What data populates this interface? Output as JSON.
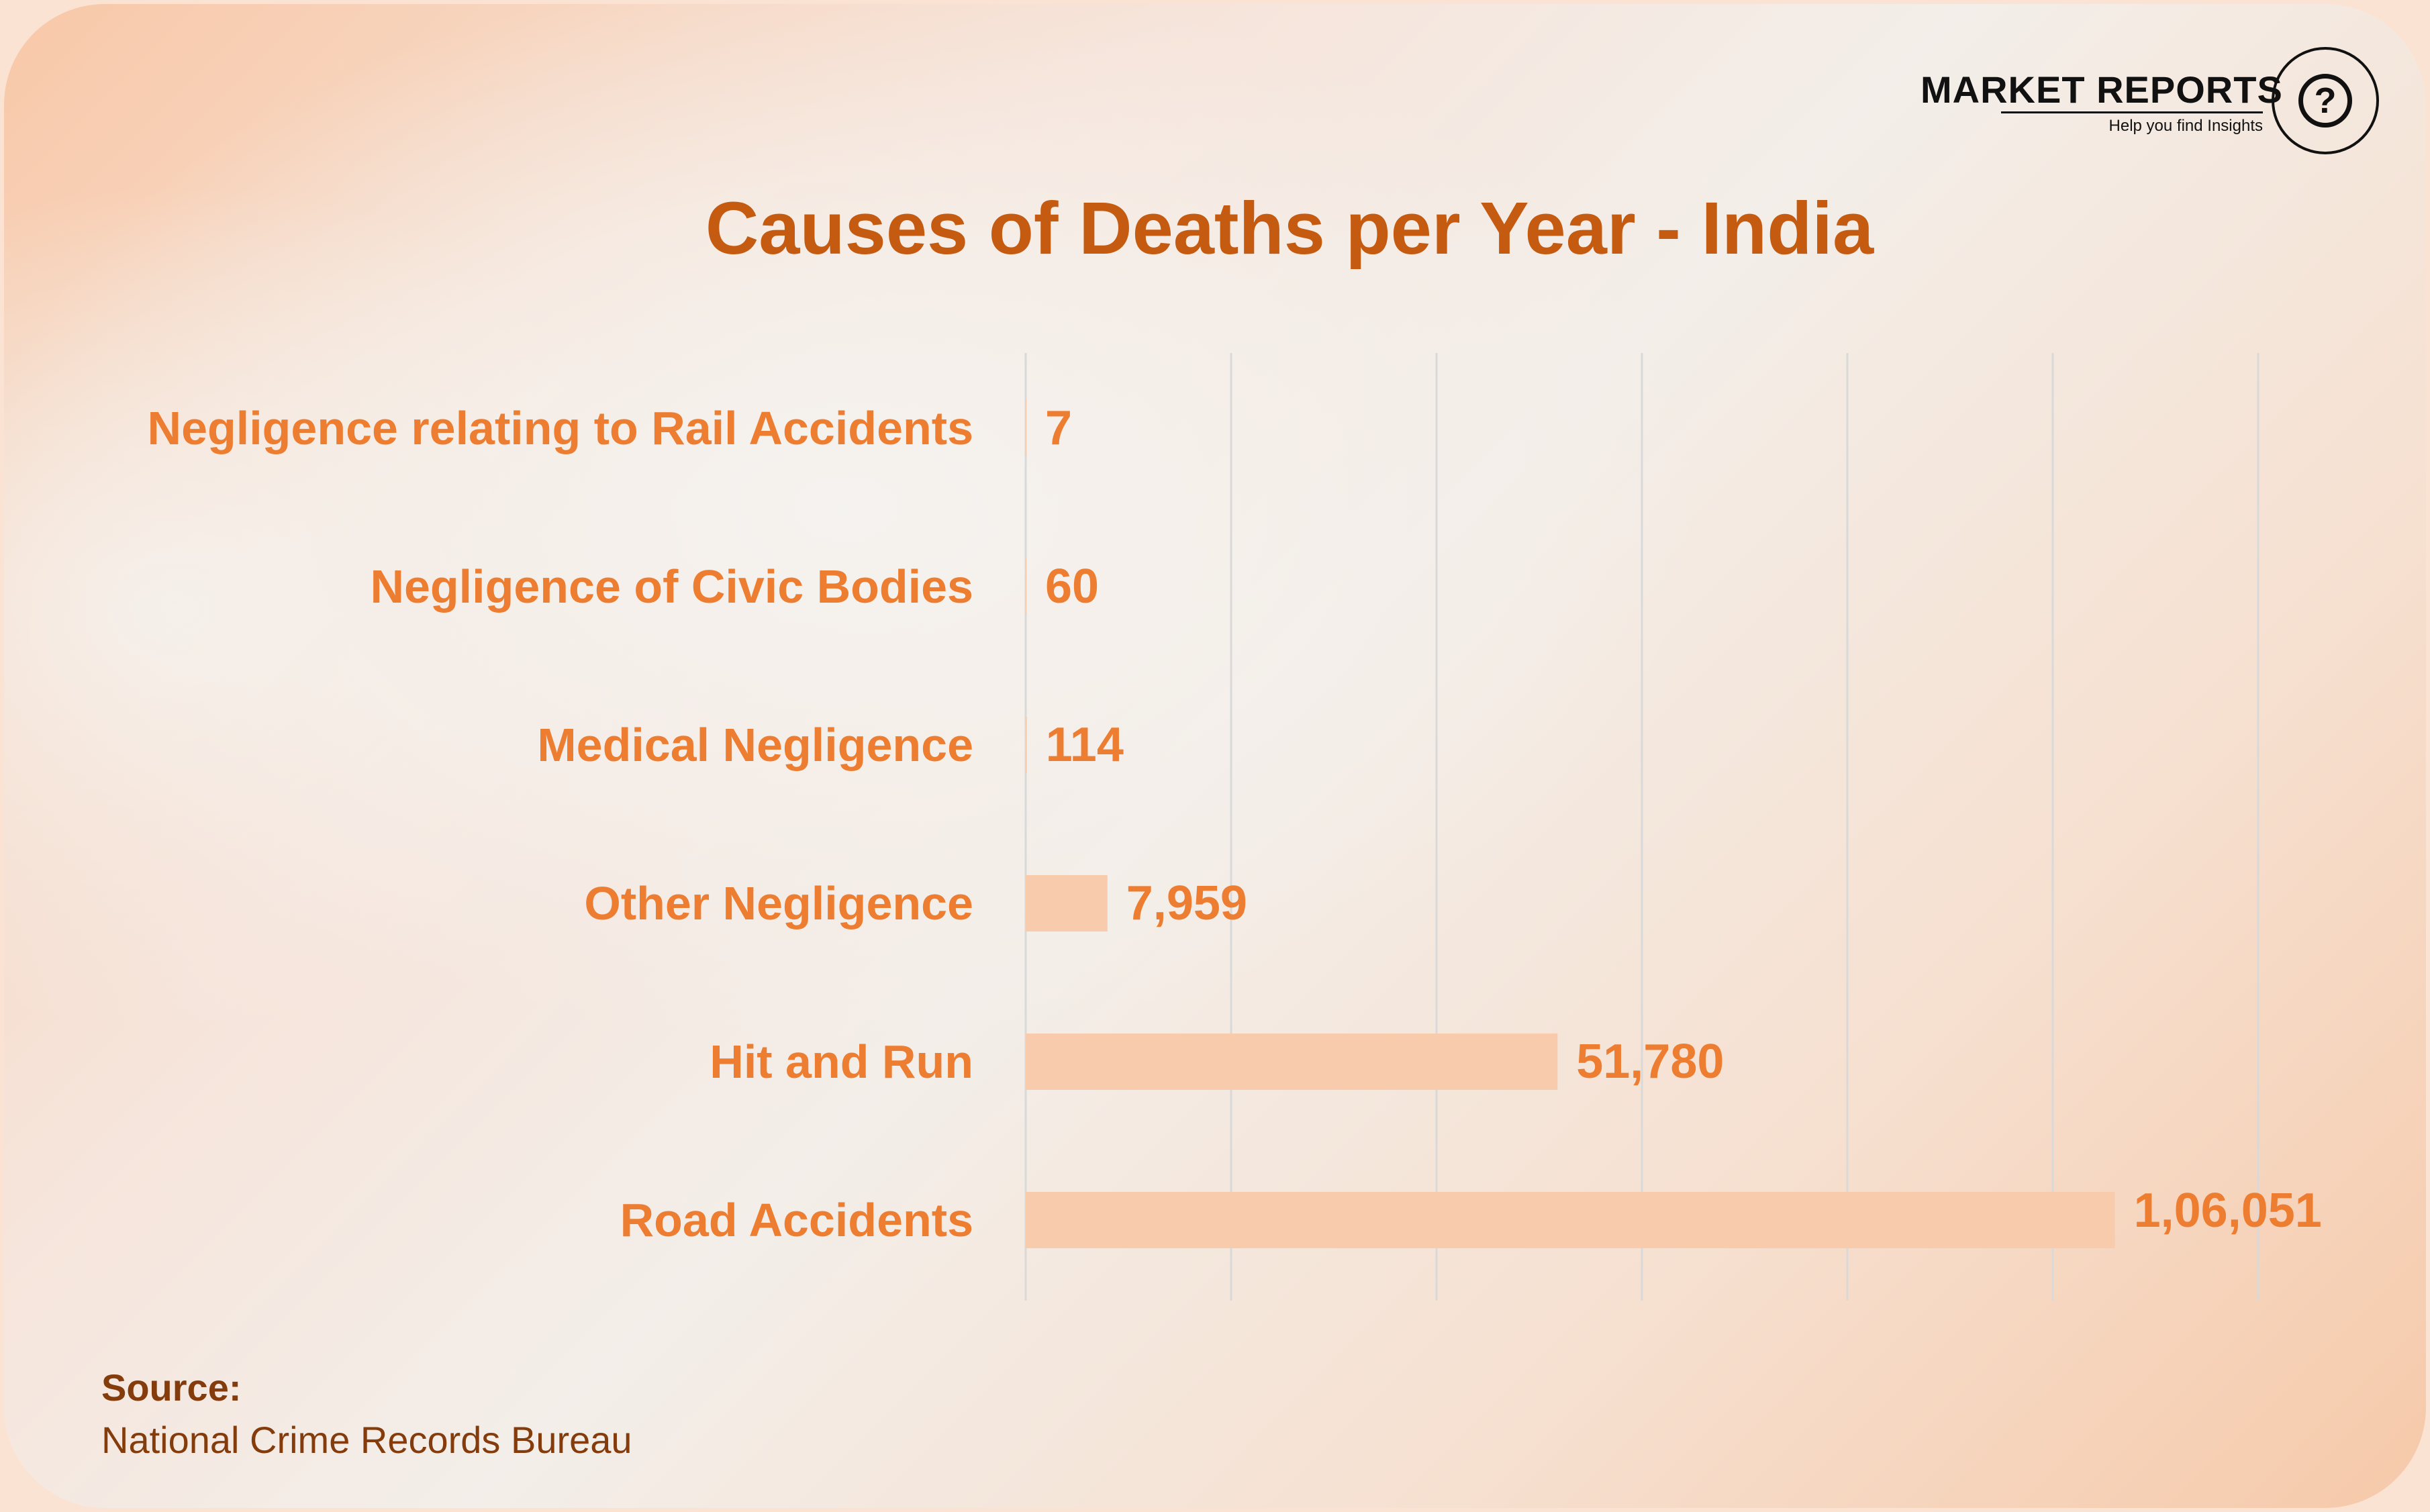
{
  "logo": {
    "name": "MARKET REPORTS",
    "tagline": "Help you find Insights",
    "icon": "question-mark-icon"
  },
  "chart_data": {
    "type": "bar",
    "orientation": "horizontal",
    "title": "Causes of Deaths per Year - India",
    "categories": [
      "Negligence relating to Rail Accidents",
      "Negligence of Civic Bodies",
      "Medical Negligence",
      "Other Negligence",
      "Hit and Run",
      "Road Accidents"
    ],
    "values": [
      7,
      60,
      114,
      7959,
      51780,
      106051
    ],
    "value_labels": [
      "7",
      "60",
      "114",
      "7,959",
      "51,780",
      "1,06,051"
    ],
    "xlim": [
      0,
      120000
    ],
    "grid": true,
    "legend": "none",
    "colors": {
      "bar": "#f8cbad",
      "labels": "#ed7d31",
      "title": "#c55a11",
      "grid": "#d9d9d9"
    }
  },
  "source": {
    "label": "Source:",
    "value": "National Crime Records Bureau"
  }
}
